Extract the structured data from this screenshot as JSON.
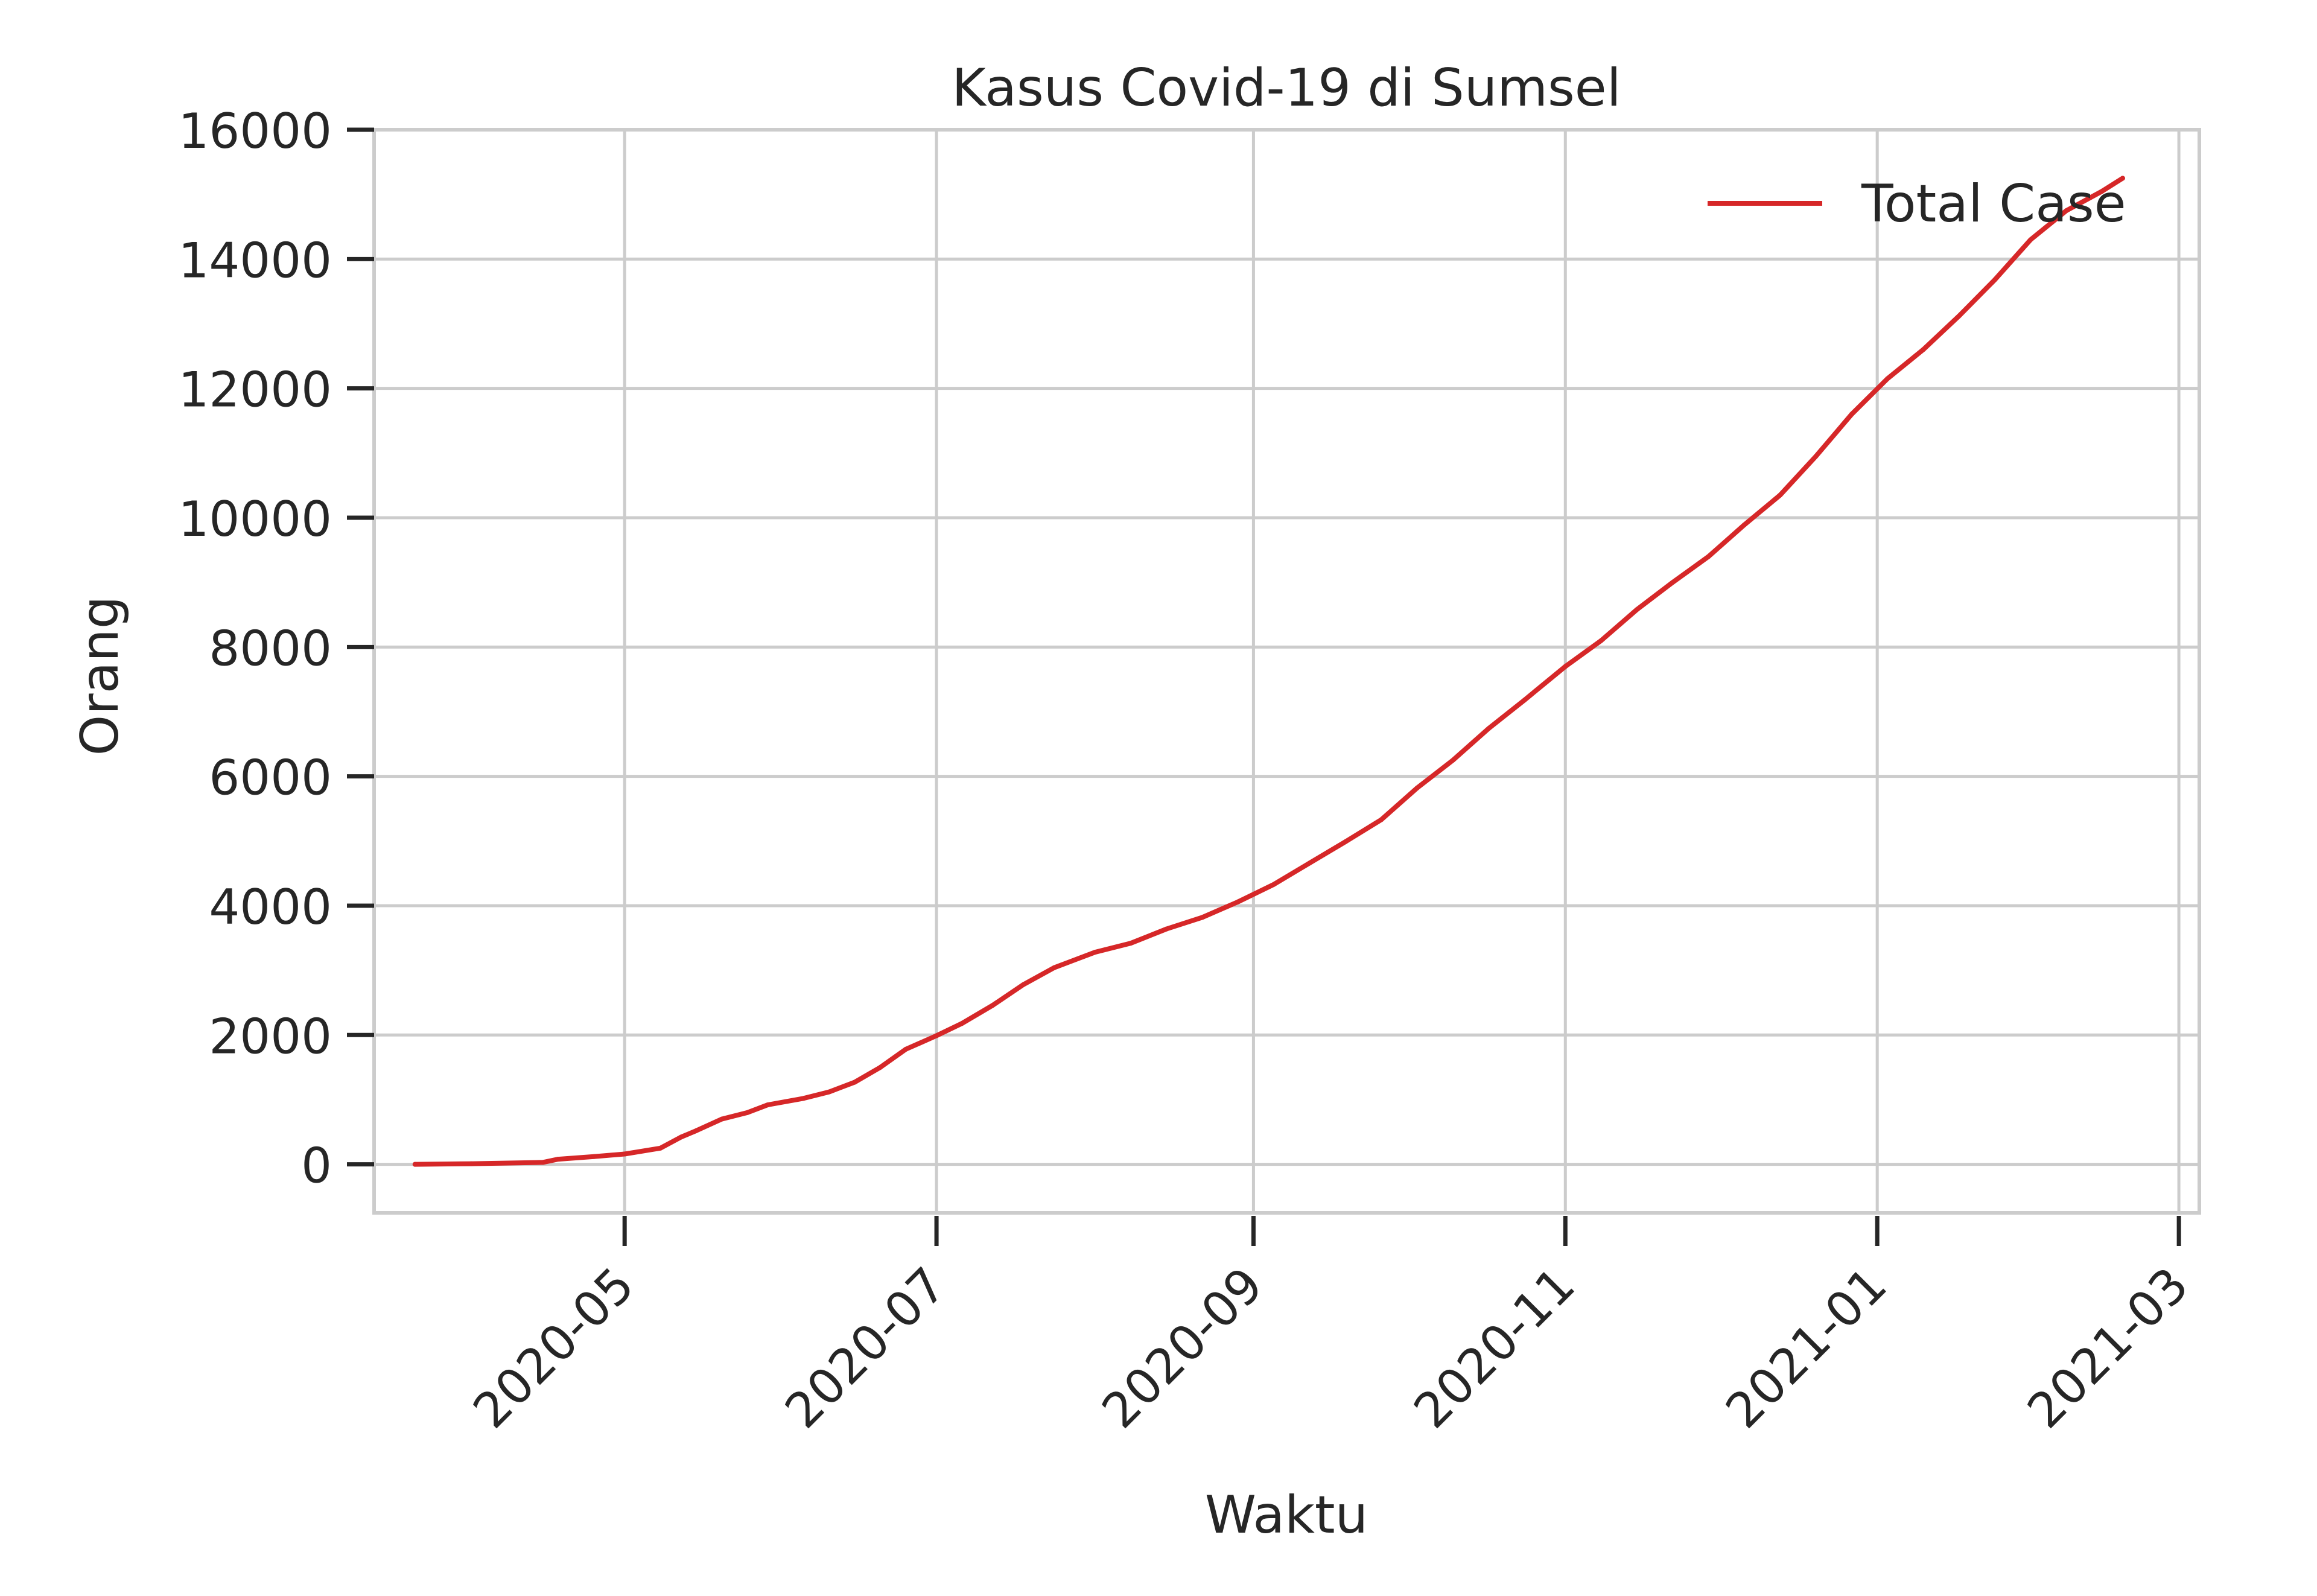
{
  "chart_data": {
    "type": "line",
    "title": "Kasus Covid-19 di Sumsel",
    "xlabel": "Waktu",
    "ylabel": "Orang",
    "x_type": "date",
    "xlim": [
      "2020-03-13",
      "2021-03-05"
    ],
    "ylim": [
      -750,
      16000
    ],
    "x_ticks": [
      "2020-05",
      "2020-07",
      "2020-09",
      "2020-11",
      "2021-01",
      "2021-03"
    ],
    "y_ticks": [
      "0",
      "2000",
      "4000",
      "6000",
      "8000",
      "10000",
      "12000",
      "14000",
      "16000"
    ],
    "grid": true,
    "legend_position": "top-right",
    "series": [
      {
        "name": "Total Case",
        "color": "#d62728",
        "x": [
          "2020-03-21",
          "2020-04-01",
          "2020-04-15",
          "2020-04-18",
          "2020-04-25",
          "2020-05-01",
          "2020-05-08",
          "2020-05-12",
          "2020-05-15",
          "2020-05-20",
          "2020-05-25",
          "2020-05-29",
          "2020-06-05",
          "2020-06-10",
          "2020-06-15",
          "2020-06-20",
          "2020-06-25",
          "2020-07-01",
          "2020-07-06",
          "2020-07-12",
          "2020-07-18",
          "2020-07-24",
          "2020-08-01",
          "2020-08-08",
          "2020-08-15",
          "2020-08-22",
          "2020-08-29",
          "2020-09-05",
          "2020-09-12",
          "2020-09-19",
          "2020-09-26",
          "2020-10-03",
          "2020-10-10",
          "2020-10-17",
          "2020-10-24",
          "2020-11-01",
          "2020-11-08",
          "2020-11-15",
          "2020-11-22",
          "2020-11-29",
          "2020-12-06",
          "2020-12-13",
          "2020-12-20",
          "2020-12-27",
          "2021-01-03",
          "2021-01-10",
          "2021-01-17",
          "2021-01-24",
          "2021-01-31",
          "2021-02-07",
          "2021-02-14",
          "2021-02-18"
        ],
        "values": [
          0,
          10,
          30,
          80,
          120,
          160,
          250,
          420,
          520,
          700,
          800,
          920,
          1020,
          1120,
          1270,
          1500,
          1780,
          1990,
          2180,
          2460,
          2780,
          3040,
          3280,
          3420,
          3640,
          3820,
          4060,
          4330,
          4660,
          4990,
          5330,
          5820,
          6250,
          6740,
          7180,
          7700,
          8100,
          8580,
          9000,
          9400,
          9890,
          10350,
          10950,
          11600,
          12150,
          12600,
          13120,
          13680,
          14300,
          14750,
          15050,
          15250
        ]
      }
    ]
  }
}
